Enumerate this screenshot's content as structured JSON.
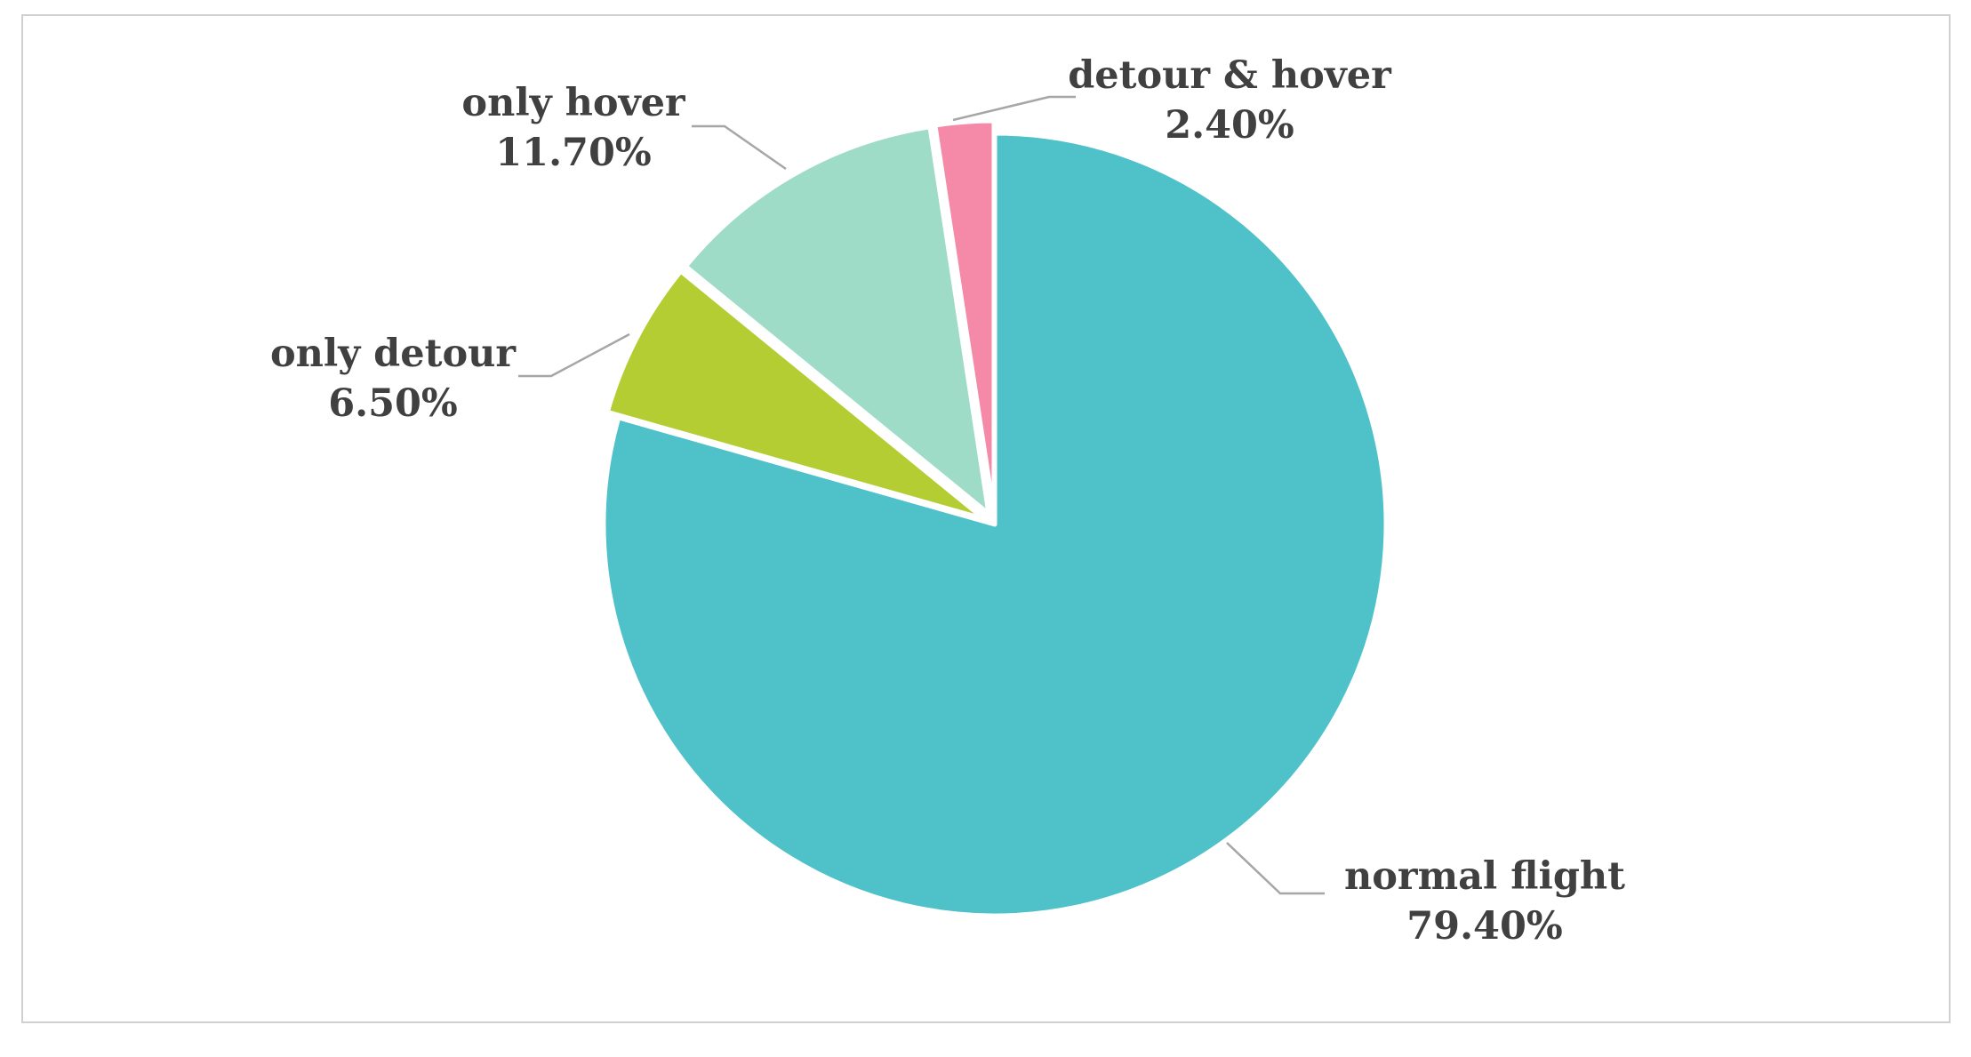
{
  "chart_data": {
    "type": "pie",
    "title": "",
    "start_angle_deg": 0,
    "direction": "clockwise",
    "slices": [
      {
        "label": "normal flight",
        "value": 79.4,
        "display": "79.40%",
        "color": "#4fc1c9",
        "explode": false
      },
      {
        "label": "only detour",
        "value": 6.5,
        "display": "6.50%",
        "color": "#b3cd33",
        "explode": true
      },
      {
        "label": "only hover",
        "value": 11.7,
        "display": "11.70%",
        "color": "#9edcc8",
        "explode": true
      },
      {
        "label": "detour & hover",
        "value": 2.4,
        "display": "2.40%",
        "color": "#f58aa8",
        "explode": true
      }
    ],
    "legend": "none",
    "labels": "outside-with-leader-lines"
  },
  "style": {
    "border_color": "#d0d0d0",
    "leader_line_color": "#a6a6a6",
    "label_color": "#404040",
    "slice_separator_color": "#ffffff"
  }
}
